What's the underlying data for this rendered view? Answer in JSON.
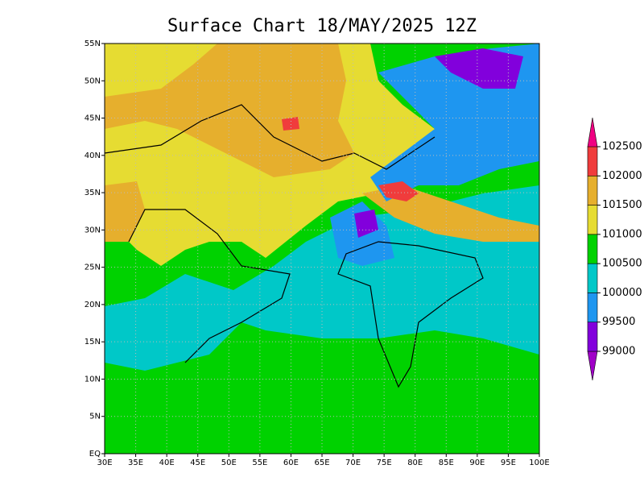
{
  "title": "Surface Chart 18/MAY/2025 12Z",
  "map": {
    "lonlim": [
      30,
      100
    ],
    "latlim": [
      0,
      55
    ],
    "lonticks": [
      {
        "value": 30,
        "label": "30E"
      },
      {
        "value": 35,
        "label": "35E"
      },
      {
        "value": 40,
        "label": "40E"
      },
      {
        "value": 45,
        "label": "45E"
      },
      {
        "value": 50,
        "label": "50E"
      },
      {
        "value": 55,
        "label": "55E"
      },
      {
        "value": 60,
        "label": "60E"
      },
      {
        "value": 65,
        "label": "65E"
      },
      {
        "value": 70,
        "label": "70E"
      },
      {
        "value": 75,
        "label": "75E"
      },
      {
        "value": 80,
        "label": "80E"
      },
      {
        "value": 85,
        "label": "85E"
      },
      {
        "value": 90,
        "label": "90E"
      },
      {
        "value": 95,
        "label": "95E"
      },
      {
        "value": 100,
        "label": "100E"
      }
    ],
    "latticks": [
      {
        "value": 0,
        "label": "EQ"
      },
      {
        "value": 5,
        "label": "5N"
      },
      {
        "value": 10,
        "label": "10N"
      },
      {
        "value": 15,
        "label": "15N"
      },
      {
        "value": 20,
        "label": "20N"
      },
      {
        "value": 25,
        "label": "25N"
      },
      {
        "value": 30,
        "label": "30N"
      },
      {
        "value": 35,
        "label": "35N"
      },
      {
        "value": 40,
        "label": "40N"
      },
      {
        "value": 45,
        "label": "45N"
      },
      {
        "value": 50,
        "label": "50N"
      },
      {
        "value": 55,
        "label": "55N"
      }
    ],
    "grid": true
  },
  "colorbar": {
    "levels": [
      99000,
      99500,
      100000,
      100500,
      101000,
      101500,
      102000,
      102500
    ],
    "colors": [
      "#a000c8",
      "#8200dc",
      "#1e96f0",
      "#00c8c8",
      "#00d200",
      "#e6dc32",
      "#e6af2d",
      "#f03c3c",
      "#f00082"
    ]
  }
}
